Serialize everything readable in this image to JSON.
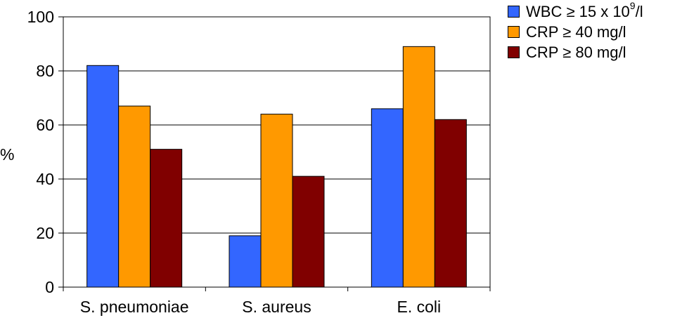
{
  "chart_data": {
    "type": "bar",
    "categories": [
      "S. pneumoniae",
      "S. aureus",
      "E. coli"
    ],
    "series": [
      {
        "name": "WBC ≥ 15 x 10⁹/l",
        "color": "#3366ff",
        "values": [
          82,
          19,
          66
        ]
      },
      {
        "name": "CRP ≥ 40 mg/l",
        "color": "#ff9900",
        "values": [
          67,
          64,
          89
        ]
      },
      {
        "name": "CRP ≥ 80 mg/l",
        "color": "#800000",
        "values": [
          51,
          41,
          62
        ]
      }
    ],
    "title": "",
    "xlabel": "",
    "ylabel": "%",
    "ylim": [
      0,
      100
    ],
    "yticks": [
      "0",
      "20",
      "40",
      "60",
      "80",
      "100"
    ],
    "grid": true,
    "legend_position": "top-right"
  },
  "legend": [
    {
      "prefix": "WBC ≥ 15 x 10",
      "sup": "9",
      "suffix": "/l"
    },
    {
      "prefix": "CRP ≥ 40 mg/l",
      "sup": "",
      "suffix": ""
    },
    {
      "prefix": "CRP ≥ 80 mg/l",
      "sup": "",
      "suffix": ""
    }
  ]
}
